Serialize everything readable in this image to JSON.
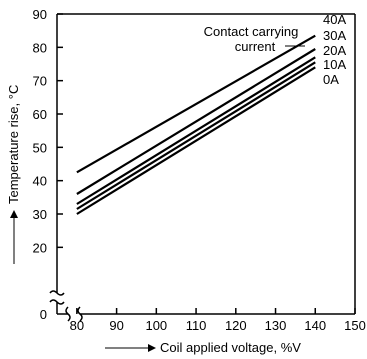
{
  "chart_data": {
    "type": "line",
    "xlabel": "Coil applied voltage, %V",
    "ylabel": "Temperature rise, °C",
    "xlim": [
      75,
      150
    ],
    "ylim": [
      0,
      90
    ],
    "x_ticks": [
      "80",
      "90",
      "100",
      "110",
      "120",
      "130",
      "140",
      "150"
    ],
    "y_ticks": [
      "0",
      "20",
      "30",
      "40",
      "50",
      "60",
      "70",
      "80",
      "90"
    ],
    "axis_break": true,
    "grid": false,
    "annotation": {
      "line1": "Contact carrying",
      "line2": "current"
    },
    "series": [
      {
        "name": "40A",
        "x": [
          80,
          140
        ],
        "y": [
          42.5,
          83.5
        ]
      },
      {
        "name": "30A",
        "x": [
          80,
          140
        ],
        "y": [
          36,
          79.5
        ]
      },
      {
        "name": "20A",
        "x": [
          80,
          140
        ],
        "y": [
          33,
          77
        ]
      },
      {
        "name": "10A",
        "x": [
          80,
          140
        ],
        "y": [
          31.5,
          75.5
        ]
      },
      {
        "name": "0A",
        "x": [
          80,
          140
        ],
        "y": [
          30,
          74
        ]
      }
    ]
  }
}
